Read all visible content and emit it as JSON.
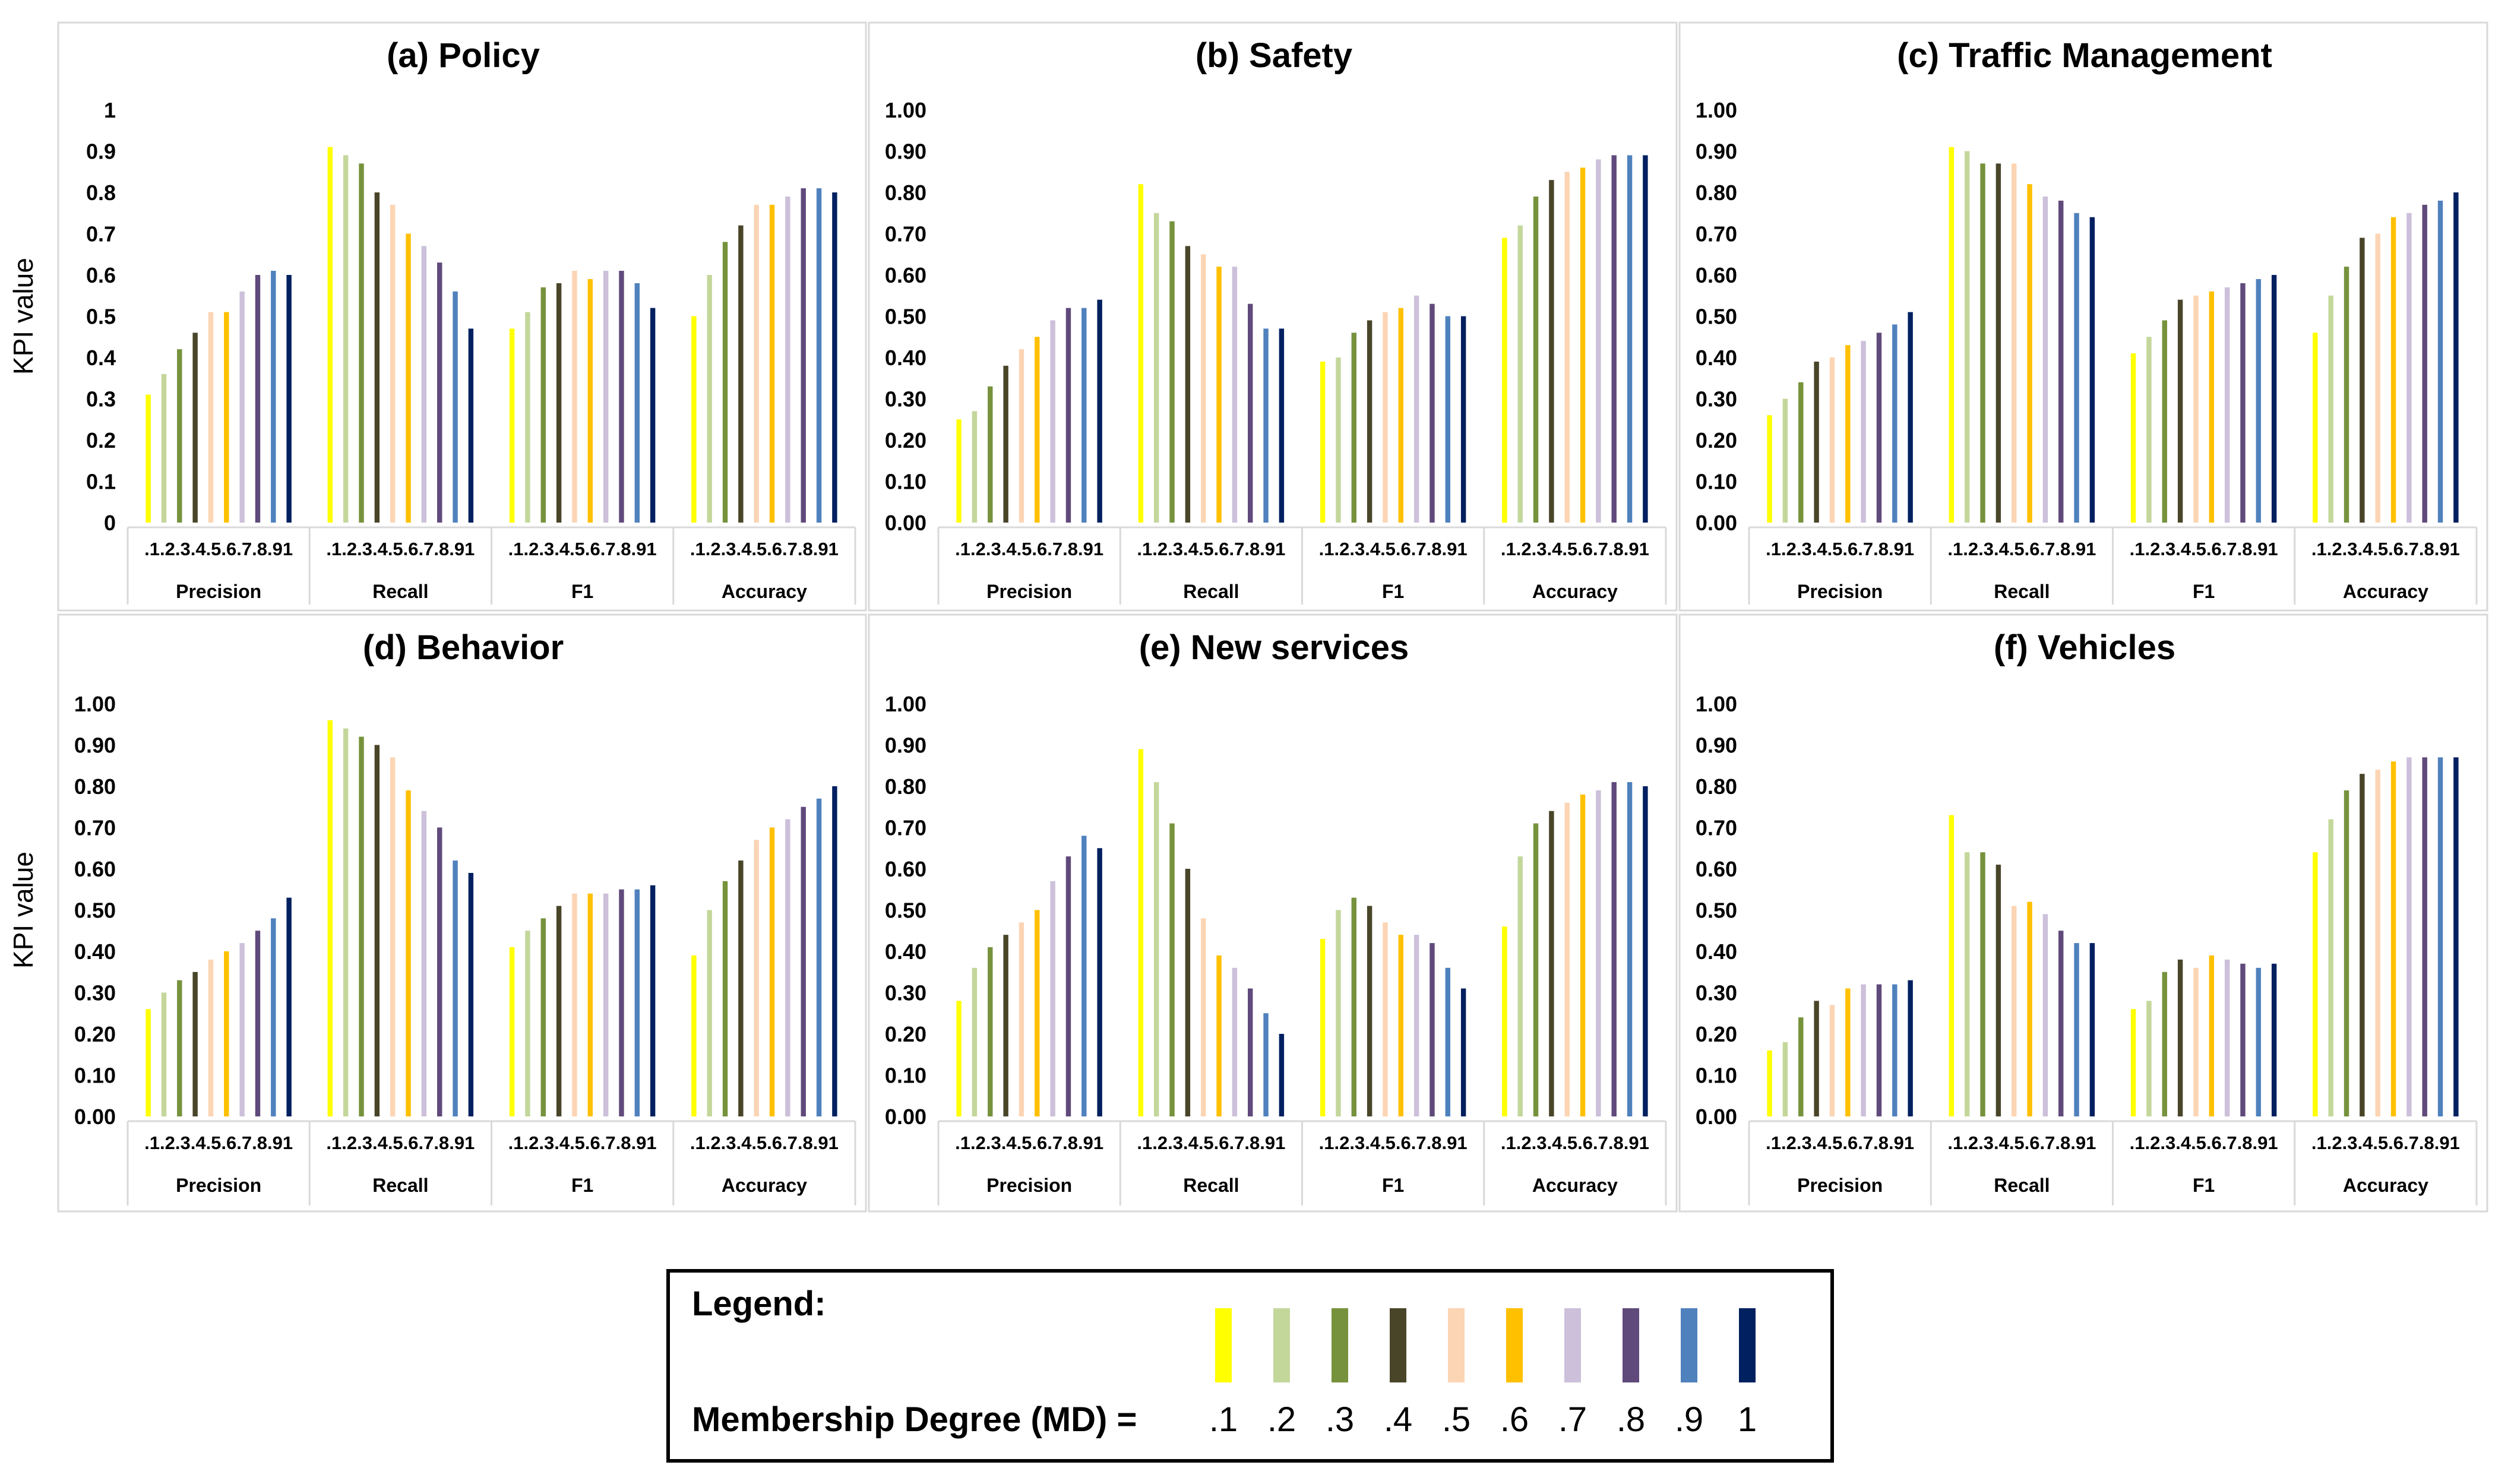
{
  "yaxis_label": "KPI value",
  "group_labels": [
    "Precision",
    "Recall",
    "F1",
    "Accuracy"
  ],
  "md_tick_labels": [
    ".1",
    ".2",
    ".3",
    ".4",
    ".5",
    ".6",
    ".7",
    ".8",
    ".9",
    "1"
  ],
  "series_colors": [
    "#ffff00",
    "#c4d79b",
    "#76923c",
    "#494529",
    "#fcd5b4",
    "#ffc000",
    "#ccc0da",
    "#604a7b",
    "#4f81bd",
    "#002060"
  ],
  "legend": {
    "title": "Legend:",
    "md_label": "Membership Degree (MD) =",
    "items": [
      ".1",
      ".2",
      ".3",
      ".4",
      ".5",
      ".6",
      ".7",
      ".8",
      ".9",
      "1"
    ]
  },
  "chart_data": [
    {
      "type": "bar",
      "title": "(a) Policy",
      "ylabel": "KPI value",
      "ylim": [
        0,
        1
      ],
      "yticks": [
        "0",
        "0.1",
        "0.2",
        "0.3",
        "0.4",
        "0.5",
        "0.6",
        "0.7",
        "0.8",
        "0.9",
        "1"
      ],
      "categories": [
        "Precision",
        "Recall",
        "F1",
        "Accuracy"
      ],
      "series_names": [
        ".1",
        ".2",
        ".3",
        ".4",
        ".5",
        ".6",
        ".7",
        ".8",
        ".9",
        "1"
      ],
      "values": [
        [
          0.31,
          0.36,
          0.42,
          0.46,
          0.51,
          0.51,
          0.56,
          0.6,
          0.61,
          0.6
        ],
        [
          0.91,
          0.89,
          0.87,
          0.8,
          0.77,
          0.7,
          0.67,
          0.63,
          0.56,
          0.47
        ],
        [
          0.47,
          0.51,
          0.57,
          0.58,
          0.61,
          0.59,
          0.61,
          0.61,
          0.58,
          0.52
        ],
        [
          0.5,
          0.6,
          0.68,
          0.72,
          0.77,
          0.77,
          0.79,
          0.81,
          0.81,
          0.8
        ]
      ]
    },
    {
      "type": "bar",
      "title": "(b) Safety",
      "ylabel": "",
      "ylim": [
        0,
        1
      ],
      "yticks": [
        "0.00",
        "0.10",
        "0.20",
        "0.30",
        "0.40",
        "0.50",
        "0.60",
        "0.70",
        "0.80",
        "0.90",
        "1.00"
      ],
      "categories": [
        "Precision",
        "Recall",
        "F1",
        "Accuracy"
      ],
      "series_names": [
        ".1",
        ".2",
        ".3",
        ".4",
        ".5",
        ".6",
        ".7",
        ".8",
        ".9",
        "1"
      ],
      "values": [
        [
          0.25,
          0.27,
          0.33,
          0.38,
          0.42,
          0.45,
          0.49,
          0.52,
          0.52,
          0.54
        ],
        [
          0.82,
          0.75,
          0.73,
          0.67,
          0.65,
          0.62,
          0.62,
          0.53,
          0.47,
          0.47
        ],
        [
          0.39,
          0.4,
          0.46,
          0.49,
          0.51,
          0.52,
          0.55,
          0.53,
          0.5,
          0.5
        ],
        [
          0.69,
          0.72,
          0.79,
          0.83,
          0.85,
          0.86,
          0.88,
          0.89,
          0.89,
          0.89
        ]
      ]
    },
    {
      "type": "bar",
      "title": "(c) Traffic Management",
      "ylabel": "",
      "ylim": [
        0,
        1
      ],
      "yticks": [
        "0.00",
        "0.10",
        "0.20",
        "0.30",
        "0.40",
        "0.50",
        "0.60",
        "0.70",
        "0.80",
        "0.90",
        "1.00"
      ],
      "categories": [
        "Precision",
        "Recall",
        "F1",
        "Accuracy"
      ],
      "series_names": [
        ".1",
        ".2",
        ".3",
        ".4",
        ".5",
        ".6",
        ".7",
        ".8",
        ".9",
        "1"
      ],
      "values": [
        [
          0.26,
          0.3,
          0.34,
          0.39,
          0.4,
          0.43,
          0.44,
          0.46,
          0.48,
          0.51
        ],
        [
          0.91,
          0.9,
          0.87,
          0.87,
          0.87,
          0.82,
          0.79,
          0.78,
          0.75,
          0.74
        ],
        [
          0.41,
          0.45,
          0.49,
          0.54,
          0.55,
          0.56,
          0.57,
          0.58,
          0.59,
          0.6
        ],
        [
          0.46,
          0.55,
          0.62,
          0.69,
          0.7,
          0.74,
          0.75,
          0.77,
          0.78,
          0.8
        ]
      ]
    },
    {
      "type": "bar",
      "title": "(d) Behavior",
      "ylabel": "KPI value",
      "ylim": [
        0,
        1
      ],
      "yticks": [
        "0.00",
        "0.10",
        "0.20",
        "0.30",
        "0.40",
        "0.50",
        "0.60",
        "0.70",
        "0.80",
        "0.90",
        "1.00"
      ],
      "categories": [
        "Precision",
        "Recall",
        "F1",
        "Accuracy"
      ],
      "series_names": [
        ".1",
        ".2",
        ".3",
        ".4",
        ".5",
        ".6",
        ".7",
        ".8",
        ".9",
        "1"
      ],
      "values": [
        [
          0.26,
          0.3,
          0.33,
          0.35,
          0.38,
          0.4,
          0.42,
          0.45,
          0.48,
          0.53
        ],
        [
          0.96,
          0.94,
          0.92,
          0.9,
          0.87,
          0.79,
          0.74,
          0.7,
          0.62,
          0.59
        ],
        [
          0.41,
          0.45,
          0.48,
          0.51,
          0.54,
          0.54,
          0.54,
          0.55,
          0.55,
          0.56
        ],
        [
          0.39,
          0.5,
          0.57,
          0.62,
          0.67,
          0.7,
          0.72,
          0.75,
          0.77,
          0.8
        ]
      ]
    },
    {
      "type": "bar",
      "title": "(e) New services",
      "ylabel": "",
      "ylim": [
        0,
        1
      ],
      "yticks": [
        "0.00",
        "0.10",
        "0.20",
        "0.30",
        "0.40",
        "0.50",
        "0.60",
        "0.70",
        "0.80",
        "0.90",
        "1.00"
      ],
      "categories": [
        "Precision",
        "Recall",
        "F1",
        "Accuracy"
      ],
      "series_names": [
        ".1",
        ".2",
        ".3",
        ".4",
        ".5",
        ".6",
        ".7",
        ".8",
        ".9",
        "1"
      ],
      "values": [
        [
          0.28,
          0.36,
          0.41,
          0.44,
          0.47,
          0.5,
          0.57,
          0.63,
          0.68,
          0.65
        ],
        [
          0.89,
          0.81,
          0.71,
          0.6,
          0.48,
          0.39,
          0.36,
          0.31,
          0.25,
          0.2
        ],
        [
          0.43,
          0.5,
          0.53,
          0.51,
          0.47,
          0.44,
          0.44,
          0.42,
          0.36,
          0.31
        ],
        [
          0.46,
          0.63,
          0.71,
          0.74,
          0.76,
          0.78,
          0.79,
          0.81,
          0.81,
          0.8
        ]
      ]
    },
    {
      "type": "bar",
      "title": "(f) Vehicles",
      "ylabel": "",
      "ylim": [
        0,
        1
      ],
      "yticks": [
        "0.00",
        "0.10",
        "0.20",
        "0.30",
        "0.40",
        "0.50",
        "0.60",
        "0.70",
        "0.80",
        "0.90",
        "1.00"
      ],
      "categories": [
        "Precision",
        "Recall",
        "F1",
        "Accuracy"
      ],
      "series_names": [
        ".1",
        ".2",
        ".3",
        ".4",
        ".5",
        ".6",
        ".7",
        ".8",
        ".9",
        "1"
      ],
      "values": [
        [
          0.16,
          0.18,
          0.24,
          0.28,
          0.27,
          0.31,
          0.32,
          0.32,
          0.32,
          0.33
        ],
        [
          0.73,
          0.64,
          0.64,
          0.61,
          0.51,
          0.52,
          0.49,
          0.45,
          0.42,
          0.42
        ],
        [
          0.26,
          0.28,
          0.35,
          0.38,
          0.36,
          0.39,
          0.38,
          0.37,
          0.36,
          0.37
        ],
        [
          0.64,
          0.72,
          0.79,
          0.83,
          0.84,
          0.86,
          0.87,
          0.87,
          0.87,
          0.87
        ]
      ]
    }
  ]
}
